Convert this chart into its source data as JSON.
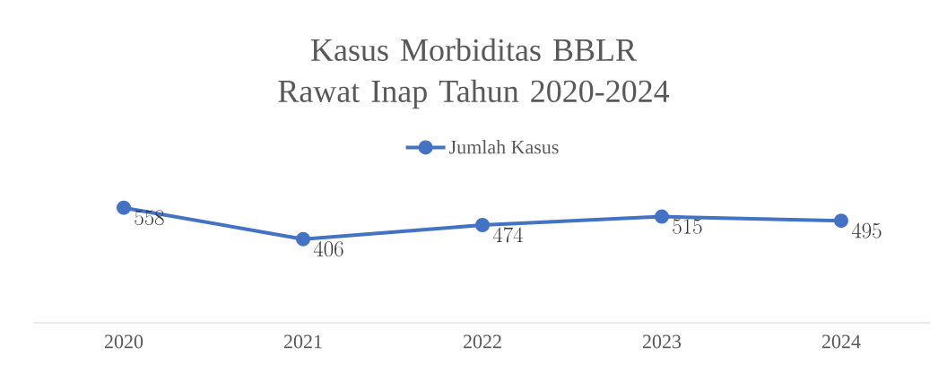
{
  "chart_data": {
    "type": "line",
    "title": "Kasus Morbiditas BBLR Rawat Inap Tahun 2020-2024",
    "categories": [
      "2020",
      "2021",
      "2022",
      "2023",
      "2024"
    ],
    "series": [
      {
        "name": "Jumlah Kasus",
        "color": "#4472c4",
        "values": [
          558,
          406,
          474,
          515,
          495
        ]
      }
    ],
    "tick_labels": "x",
    "data_labels": true,
    "legend": "top",
    "marker": "circle",
    "line_style": "solid"
  }
}
